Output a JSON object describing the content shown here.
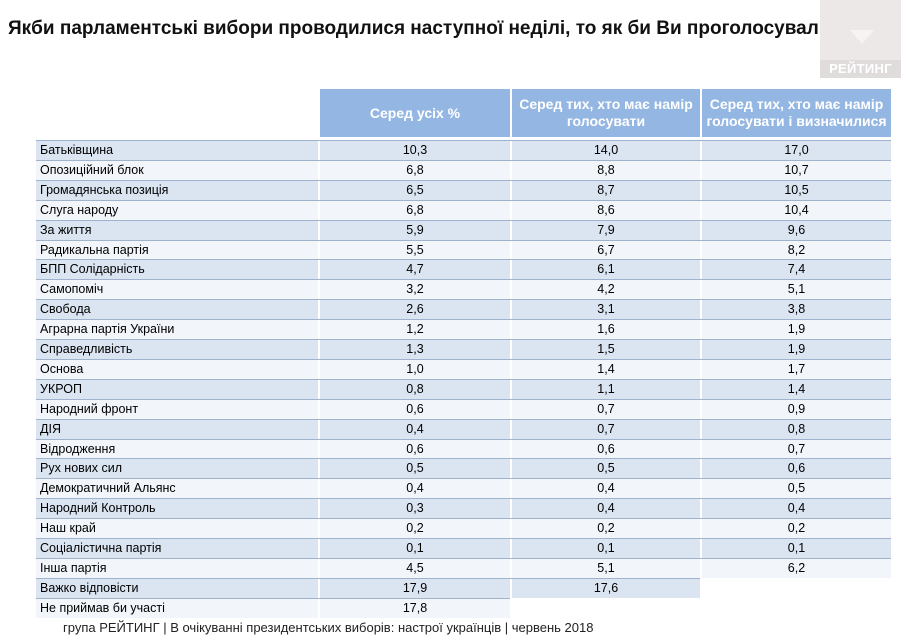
{
  "title": "Якби парламентські вибори проводилися наступної неділі, то як би Ви проголосували?",
  "logo_text": "РЕЙТИНГ",
  "columns": [
    "Серед усіх %",
    "Серед тих, хто має намір голосувати",
    "Серед тих, хто має намір голосувати і визначилися"
  ],
  "rows": [
    {
      "name": "Батьківщина",
      "all": "10,3",
      "intend": "14,0",
      "decided": "17,0"
    },
    {
      "name": "Опозиційний блок",
      "all": "6,8",
      "intend": "8,8",
      "decided": "10,7"
    },
    {
      "name": "Громадянська позиція",
      "all": "6,5",
      "intend": "8,7",
      "decided": "10,5"
    },
    {
      "name": "Слуга народу",
      "all": "6,8",
      "intend": "8,6",
      "decided": "10,4"
    },
    {
      "name": "За життя",
      "all": "5,9",
      "intend": "7,9",
      "decided": "9,6"
    },
    {
      "name": "Радикальна партія",
      "all": "5,5",
      "intend": "6,7",
      "decided": "8,2"
    },
    {
      "name": "БПП Солідарність",
      "all": "4,7",
      "intend": "6,1",
      "decided": "7,4"
    },
    {
      "name": "Самопоміч",
      "all": "3,2",
      "intend": "4,2",
      "decided": "5,1"
    },
    {
      "name": "Свобода",
      "all": "2,6",
      "intend": "3,1",
      "decided": "3,8"
    },
    {
      "name": "Аграрна партія України",
      "all": "1,2",
      "intend": "1,6",
      "decided": "1,9"
    },
    {
      "name": "Справедливість",
      "all": "1,3",
      "intend": "1,5",
      "decided": "1,9"
    },
    {
      "name": "Основа",
      "all": "1,0",
      "intend": "1,4",
      "decided": "1,7"
    },
    {
      "name": "УКРОП",
      "all": "0,8",
      "intend": "1,1",
      "decided": "1,4"
    },
    {
      "name": "Народний фронт",
      "all": "0,6",
      "intend": "0,7",
      "decided": "0,9"
    },
    {
      "name": "ДІЯ",
      "all": "0,4",
      "intend": "0,7",
      "decided": "0,8"
    },
    {
      "name": "Відродження",
      "all": "0,6",
      "intend": "0,6",
      "decided": "0,7"
    },
    {
      "name": "Рух нових сил",
      "all": "0,5",
      "intend": "0,5",
      "decided": "0,6"
    },
    {
      "name": "Демократичний Альянс",
      "all": "0,4",
      "intend": "0,4",
      "decided": "0,5"
    },
    {
      "name": "Народний Контроль",
      "all": "0,3",
      "intend": "0,4",
      "decided": "0,4"
    },
    {
      "name": "Наш край",
      "all": "0,2",
      "intend": "0,2",
      "decided": "0,2"
    },
    {
      "name": "Соціалістична партія",
      "all": "0,1",
      "intend": "0,1",
      "decided": "0,1"
    },
    {
      "name": "Інша партія",
      "all": "4,5",
      "intend": "5,1",
      "decided": "6,2"
    },
    {
      "name": "Важко відповісти",
      "all": "17,9",
      "intend": "17,6",
      "decided": null
    },
    {
      "name": "Не приймав би участі",
      "all": "17,8",
      "intend": null,
      "decided": null
    }
  ],
  "footer": "група РЕЙТИНГ | В очікуванні президентських виборів: настрої українців | червень 2018"
}
